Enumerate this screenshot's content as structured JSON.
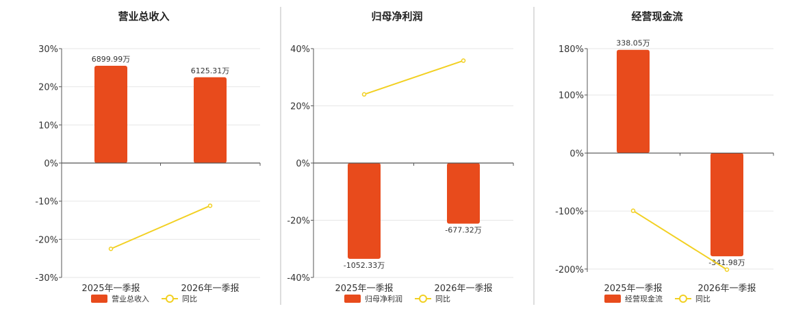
{
  "colors": {
    "bar": "#E84B1C",
    "line": "#F2D022",
    "axis": "#555555",
    "grid": "#E6E6E6",
    "divider": "#BBBBBB"
  },
  "chart_data": [
    {
      "type": "bar",
      "title": "营业总收入",
      "categories": [
        "2025年一季报",
        "2026年一季报"
      ],
      "bar_series": {
        "name": "营业总收入",
        "values": [
          25.5,
          22.5
        ],
        "labels": [
          "6899.99万",
          "6125.31万"
        ]
      },
      "line_series": {
        "name": "同比",
        "values": [
          -22.5,
          -11.2
        ]
      },
      "ylim": [
        -30,
        30
      ],
      "yticks": [
        30,
        20,
        10,
        0,
        -10,
        -20,
        -30
      ],
      "ytick_labels": [
        "30%",
        "20%",
        "10%",
        "0%",
        "-10%",
        "-20%",
        "-30%"
      ],
      "grid": true,
      "legend": "bottom"
    },
    {
      "type": "bar",
      "title": "归母净利润",
      "categories": [
        "2025年一季报",
        "2026年一季报"
      ],
      "bar_series": {
        "name": "归母净利润",
        "values": [
          -33.5,
          -21.2
        ],
        "labels": [
          "-1052.33万",
          "-677.32万"
        ]
      },
      "line_series": {
        "name": "同比",
        "values": [
          24.0,
          35.8
        ]
      },
      "ylim": [
        -40,
        40
      ],
      "yticks": [
        40,
        20,
        0,
        -20,
        -40
      ],
      "ytick_labels": [
        "40%",
        "20%",
        "0%",
        "-20%",
        "-40%"
      ],
      "grid": true,
      "legend": "bottom"
    },
    {
      "type": "bar",
      "title": "经营现金流",
      "categories": [
        "2025年一季报",
        "2026年一季报"
      ],
      "bar_series": {
        "name": "经营现金流",
        "values": [
          178,
          -178
        ],
        "labels": [
          "338.05万",
          "-341.98万"
        ]
      },
      "line_series": {
        "name": "同比",
        "values": [
          -99.5,
          -201
        ]
      },
      "ylim": [
        -205,
        180
      ],
      "yticks": [
        180,
        100,
        0,
        -100,
        -200
      ],
      "ytick_labels": [
        "180%",
        "100%",
        "0%",
        "-100%",
        "-200%"
      ],
      "grid": true,
      "legend": "bottom"
    }
  ]
}
